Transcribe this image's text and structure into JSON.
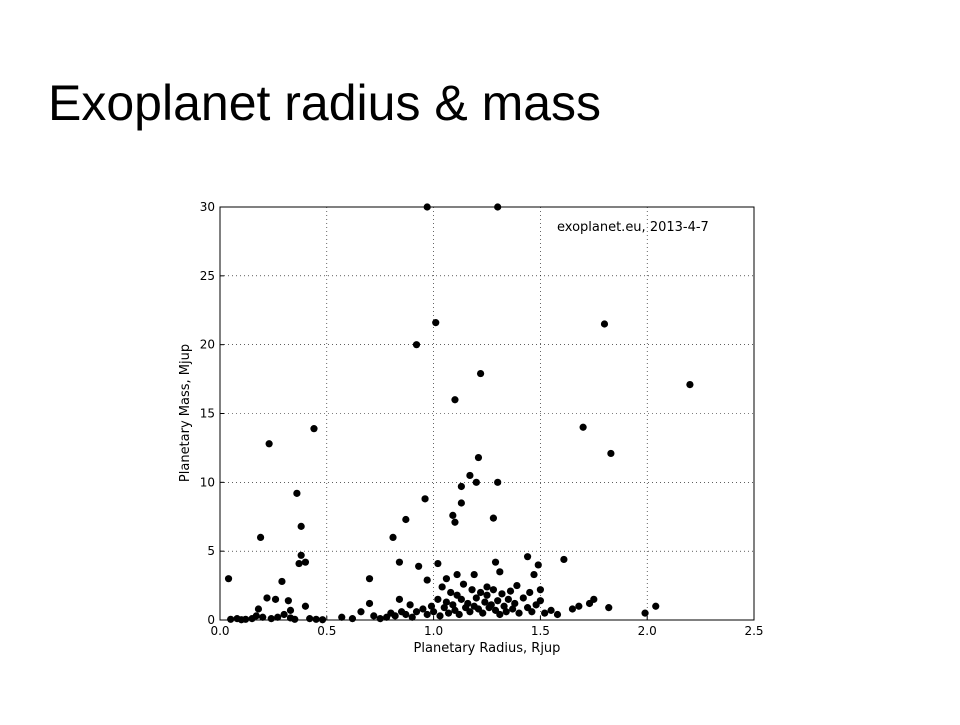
{
  "chart_data": {
    "type": "scatter",
    "title": "Exoplanet radius & mass",
    "annotation": "exoplanet.eu, 2013-4-7",
    "x_label": "Planetary Radius, Rjup",
    "y_label": "Planetary Mass, Mjup",
    "xlim": [
      0,
      2.5
    ],
    "ylim": [
      0,
      30
    ],
    "xticks": [
      {
        "value": 0,
        "label": "0.0"
      },
      0.5,
      {
        "value": 1,
        "label": "1.0"
      },
      1.5,
      {
        "value": 2,
        "label": "2.0"
      },
      2.5
    ],
    "yticks": [
      0,
      5,
      10,
      15,
      20,
      25,
      30
    ],
    "grid": true,
    "series": [
      {
        "color": "#000000",
        "x": [
          0.04,
          0.19,
          0.23,
          0.44,
          0.36,
          0.38,
          0.38,
          0.37,
          0.4,
          0.29,
          0.32,
          0.26,
          0.22,
          0.18,
          0.4,
          0.33,
          0.97,
          1.3,
          1.01,
          0.92,
          1.8,
          2.2,
          1.22,
          1.1,
          1.7,
          1.83,
          1.21,
          1.17,
          1.13,
          1.2,
          1.3,
          0.96,
          1.13,
          0.87,
          1.09,
          1.1,
          1.28,
          0.81,
          0.84,
          0.93,
          0.7,
          1.02,
          1.44,
          1.29,
          1.61,
          1.49,
          1.47,
          1.31,
          1.19,
          1.11,
          1.06,
          0.97,
          1.39,
          1.25,
          1.5,
          0.7,
          0.84,
          0.89,
          1.75,
          1.73,
          1.68,
          1.82,
          2.04,
          1.99,
          0.05,
          0.08,
          0.1,
          0.12,
          0.15,
          0.17,
          0.2,
          0.24,
          0.27,
          0.3,
          0.33,
          0.35,
          0.42,
          0.45,
          0.48,
          0.57,
          0.62,
          0.66,
          0.72,
          0.75,
          0.78,
          0.8,
          0.82,
          0.85,
          0.87,
          0.9,
          0.92,
          0.95,
          0.97,
          0.99,
          1.0,
          1.02,
          1.03,
          1.04,
          1.05,
          1.06,
          1.07,
          1.08,
          1.09,
          1.1,
          1.11,
          1.12,
          1.13,
          1.14,
          1.15,
          1.16,
          1.17,
          1.18,
          1.19,
          1.2,
          1.21,
          1.22,
          1.23,
          1.24,
          1.25,
          1.26,
          1.27,
          1.28,
          1.29,
          1.3,
          1.31,
          1.32,
          1.33,
          1.34,
          1.35,
          1.36,
          1.37,
          1.38,
          1.4,
          1.42,
          1.44,
          1.45,
          1.46,
          1.48,
          1.5,
          1.52,
          1.55,
          1.58,
          1.65
        ],
        "values": [
          3.0,
          6.0,
          12.8,
          13.9,
          9.2,
          6.8,
          4.7,
          4.1,
          4.2,
          2.8,
          1.4,
          1.5,
          1.6,
          0.8,
          1.0,
          0.7,
          30,
          30,
          21.6,
          20.0,
          21.5,
          17.1,
          17.9,
          16.0,
          14.0,
          12.1,
          11.8,
          10.5,
          9.7,
          10.0,
          10.0,
          8.8,
          8.5,
          7.3,
          7.6,
          7.1,
          7.4,
          6.0,
          4.2,
          3.9,
          3.0,
          4.1,
          4.6,
          4.2,
          4.4,
          4.0,
          3.3,
          3.5,
          3.3,
          3.3,
          3.0,
          2.9,
          2.5,
          2.4,
          2.2,
          1.2,
          1.5,
          1.1,
          1.5,
          1.2,
          1.0,
          0.9,
          1.0,
          0.5,
          0.05,
          0.1,
          0.02,
          0.05,
          0.1,
          0.3,
          0.2,
          0.1,
          0.2,
          0.4,
          0.15,
          0.05,
          0.1,
          0.05,
          0.02,
          0.2,
          0.1,
          0.6,
          0.3,
          0.1,
          0.2,
          0.5,
          0.3,
          0.6,
          0.4,
          0.2,
          0.6,
          0.8,
          0.4,
          1.0,
          0.6,
          1.5,
          0.3,
          2.4,
          0.9,
          1.3,
          0.5,
          2.0,
          1.1,
          0.7,
          1.8,
          0.4,
          1.5,
          2.6,
          0.9,
          1.2,
          0.6,
          2.2,
          1.0,
          1.6,
          0.8,
          2.0,
          0.5,
          1.3,
          1.8,
          0.9,
          1.1,
          2.2,
          0.7,
          1.4,
          0.4,
          1.9,
          1.0,
          0.6,
          1.5,
          2.1,
          0.8,
          1.2,
          0.5,
          1.6,
          0.9,
          2.0,
          0.6,
          1.1,
          1.4,
          0.5,
          0.7,
          0.4,
          0.8
        ]
      }
    ]
  }
}
